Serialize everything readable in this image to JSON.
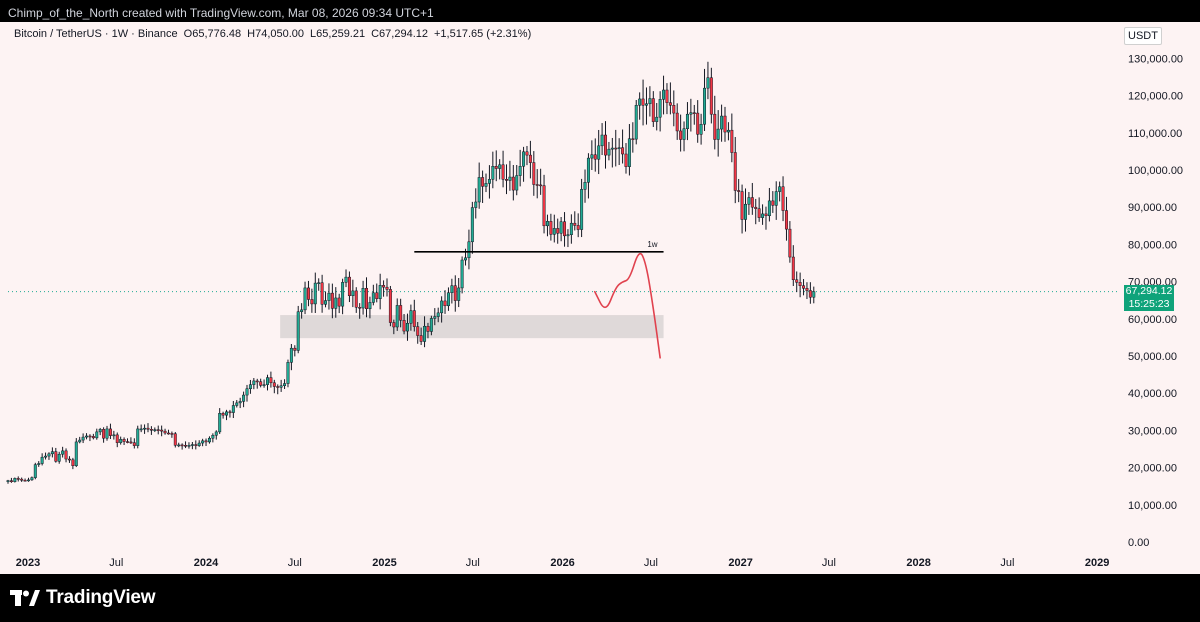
{
  "header": {
    "attribution": "Chimp_of_the_North created with TradingView.com, Mar 08, 2026 09:34 UTC+1"
  },
  "symbol": {
    "name": "Bitcoin / TetherUS · 1W · Binance",
    "open": "O65,776.48",
    "high": "H74,050.00",
    "low": "L65,259.21",
    "close": "C67,294.12",
    "change": "+1,517.65 (+2.31%)"
  },
  "currency": "USDT",
  "last_price": {
    "value": "67,294.12",
    "countdown": "15:25:23"
  },
  "annotation": {
    "level_label": "1w"
  },
  "footer": {
    "brand": "TradingView"
  },
  "colors": {
    "up": "#22ab94",
    "down": "#f23645",
    "background": "#fdf3f3",
    "forecast": "#e0424e",
    "zone": "#d9d3d3",
    "badge": "#0fa37a"
  },
  "chart_data": {
    "type": "candlestick",
    "interval": "1W",
    "y_axis": {
      "ticks": [
        0,
        10000,
        20000,
        30000,
        40000,
        50000,
        60000,
        70000,
        80000,
        90000,
        100000,
        110000,
        120000,
        130000
      ],
      "tick_labels": [
        "0.00",
        "10,000.00",
        "20,000.00",
        "30,000.00",
        "40,000.00",
        "50,000.00",
        "60,000.00",
        "70,000.00",
        "80,000.00",
        "90,000.00",
        "100,000.00",
        "110,000.00",
        "120,000.00",
        "130,000.00"
      ]
    },
    "x_axis": {
      "range": [
        "2022-11-21",
        "2029-01-15"
      ],
      "ticks": [
        {
          "date": "2023-01-01",
          "label": "2023",
          "bold": true
        },
        {
          "date": "2023-07-01",
          "label": "Jul",
          "bold": false
        },
        {
          "date": "2024-01-01",
          "label": "2024",
          "bold": true
        },
        {
          "date": "2024-07-01",
          "label": "Jul",
          "bold": false
        },
        {
          "date": "2025-01-01",
          "label": "2025",
          "bold": true
        },
        {
          "date": "2025-07-01",
          "label": "Jul",
          "bold": false
        },
        {
          "date": "2026-01-01",
          "label": "2026",
          "bold": true
        },
        {
          "date": "2026-07-01",
          "label": "Jul",
          "bold": false
        },
        {
          "date": "2027-01-01",
          "label": "2027",
          "bold": true
        },
        {
          "date": "2027-07-01",
          "label": "Jul",
          "bold": false
        },
        {
          "date": "2028-01-01",
          "label": "2028",
          "bold": true
        },
        {
          "date": "2028-07-01",
          "label": "Jul",
          "bold": false
        },
        {
          "date": "2029-01-01",
          "label": "2029",
          "bold": true
        }
      ]
    },
    "first_week": "2022-11-21",
    "last_price": 67294.12,
    "closes": [
      16500,
      16200,
      17100,
      16900,
      16600,
      16550,
      16700,
      17300,
      20800,
      21100,
      22800,
      23100,
      23700,
      24300,
      21700,
      23600,
      24500,
      22300,
      22100,
      20500,
      26900,
      27400,
      28200,
      28500,
      28400,
      28000,
      29600,
      30300,
      27900,
      30400,
      28600,
      28800,
      26700,
      27600,
      27000,
      26900,
      26700,
      25900,
      30400,
      30400,
      30600,
      30300,
      30200,
      30200,
      30100,
      29800,
      29300,
      29200,
      29100,
      26000,
      26100,
      26000,
      25800,
      26000,
      26200,
      25900,
      26600,
      27200,
      26900,
      27900,
      28700,
      29600,
      34600,
      34100,
      35000,
      34800,
      36700,
      37400,
      37800,
      39500,
      41200,
      42300,
      43300,
      43100,
      42100,
      42300,
      44200,
      42800,
      41800,
      41600,
      42000,
      42600,
      48300,
      52100,
      51500,
      61900,
      62400,
      68300,
      65200,
      64000,
      69600,
      69700,
      63900,
      64900,
      66900,
      62800,
      65600,
      63400,
      69800,
      71200,
      66200,
      67500,
      63100,
      62900,
      68200,
      62700,
      64400,
      67000,
      65400,
      69000,
      68500,
      67900,
      59000,
      57800,
      63600,
      59600,
      56700,
      58800,
      62200,
      57900,
      55500,
      53900,
      58000,
      56600,
      60100,
      60600,
      61600,
      64800,
      63500,
      67000,
      68900,
      64900,
      68300,
      75800,
      76400,
      80700,
      89900,
      91400,
      98000,
      95600,
      96400,
      97500,
      101000,
      100400,
      101400,
      97500,
      97200,
      98100,
      94600,
      98500,
      101000,
      104900,
      104000,
      102000,
      96100,
      96000,
      95800,
      85000,
      86200,
      82700,
      84300,
      83000,
      86100,
      82300,
      82600,
      85700,
      85100,
      84000,
      94800,
      96700,
      103200,
      104100,
      102900,
      106500,
      109400,
      104000,
      105600,
      105900,
      105800,
      106000,
      104300,
      100900,
      108400,
      108300,
      117400,
      119100,
      117400,
      117800,
      119200,
      113000,
      114200,
      119000,
      121500,
      118100,
      117400,
      115300,
      110500,
      108200,
      111100,
      115000,
      115400,
      115300,
      109600,
      112300,
      122000,
      124800,
      115000,
      108200,
      111000,
      114500,
      110200,
      110700,
      104700,
      94500,
      94200,
      86700,
      90800,
      92600,
      90000,
      89600,
      87200,
      88200,
      87700,
      91700,
      90500,
      94200,
      95500,
      89100,
      84100,
      76600,
      70500,
      69800,
      68900,
      68200,
      67600,
      65800,
      67294
    ]
  },
  "overlays": {
    "horizontal_line": {
      "price": 78000,
      "start": "2025-03-03",
      "end": "2026-07-27",
      "label": "1w"
    },
    "zone": {
      "price_low": 54800,
      "price_high": 61000,
      "start": "2024-06-01",
      "end": "2026-07-27"
    },
    "forecast_path": [
      {
        "date": "2026-03-08",
        "price": 67294
      },
      {
        "date": "2026-03-30",
        "price": 61500
      },
      {
        "date": "2026-04-20",
        "price": 68500
      },
      {
        "date": "2026-05-04",
        "price": 70000
      },
      {
        "date": "2026-05-18",
        "price": 70500
      },
      {
        "date": "2026-06-07",
        "price": 78800
      },
      {
        "date": "2026-06-21",
        "price": 75000
      },
      {
        "date": "2026-07-06",
        "price": 63000
      },
      {
        "date": "2026-07-20",
        "price": 49500
      }
    ]
  }
}
